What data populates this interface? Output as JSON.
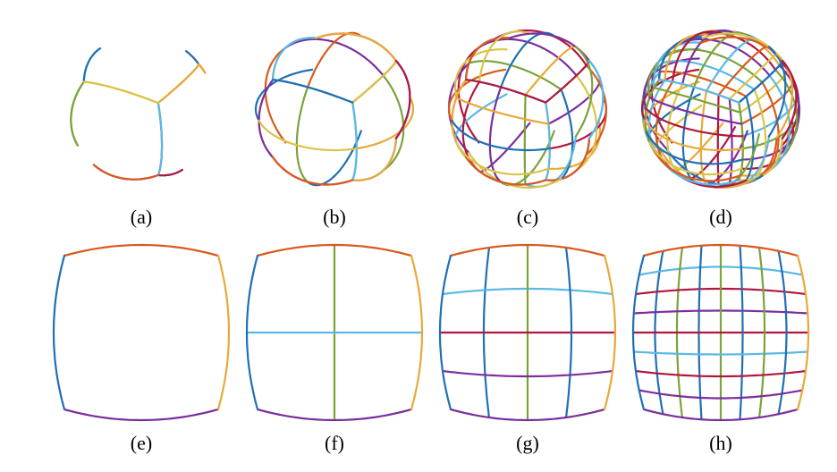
{
  "palette": {
    "blue": "#1f6fb5",
    "orange": "#e8a93a",
    "red": "#b0173f",
    "purple": "#7b2f9e",
    "green": "#7aa33a",
    "cyan": "#5ab8e6",
    "rust": "#d95a1e",
    "mustard": "#d9c44a"
  },
  "panels": [
    {
      "label": "(a)",
      "kind": "sphere",
      "level": 0
    },
    {
      "label": "(b)",
      "kind": "sphere",
      "level": 1
    },
    {
      "label": "(c)",
      "kind": "sphere",
      "level": 2
    },
    {
      "label": "(d)",
      "kind": "sphere",
      "level": 3
    },
    {
      "label": "(e)",
      "kind": "square",
      "level": 0
    },
    {
      "label": "(f)",
      "kind": "square",
      "level": 1
    },
    {
      "label": "(g)",
      "kind": "square",
      "level": 2
    },
    {
      "label": "(h)",
      "kind": "square",
      "level": 3
    }
  ]
}
